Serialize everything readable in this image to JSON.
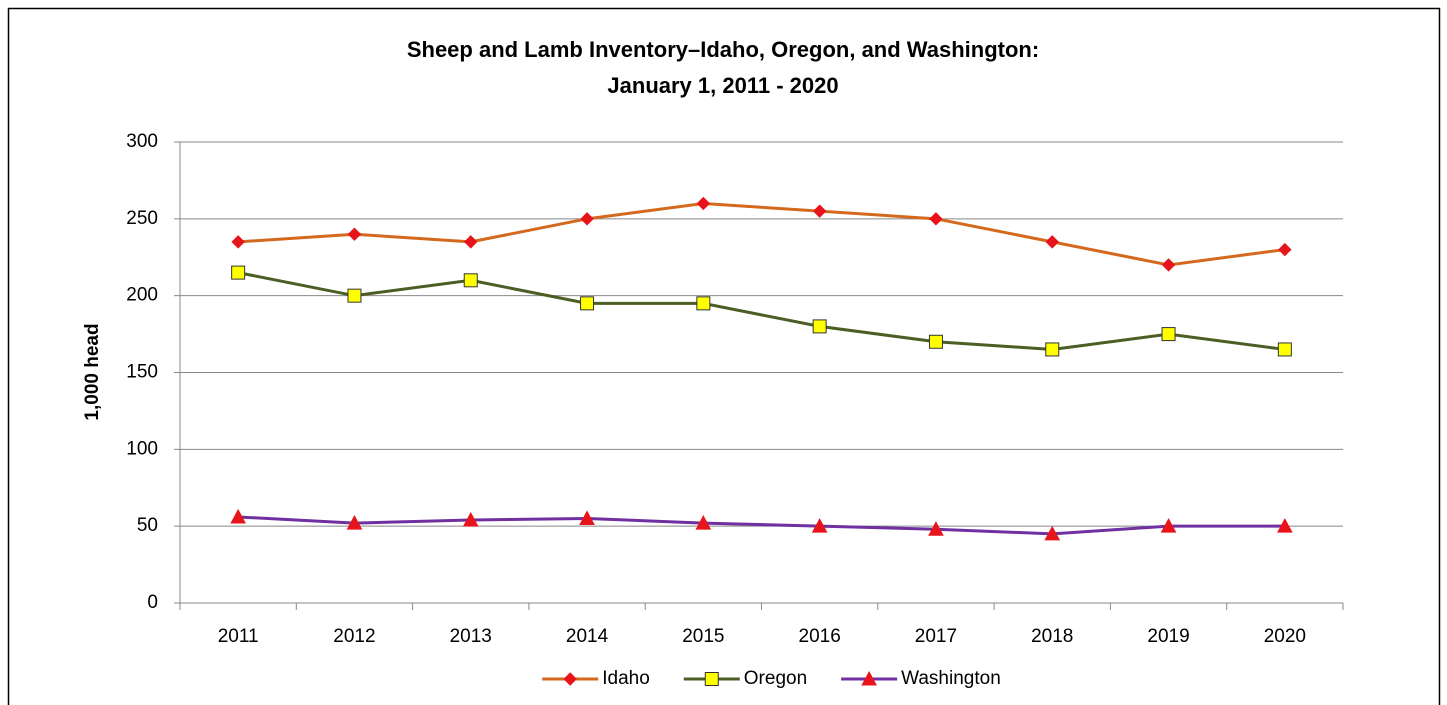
{
  "chart_data": {
    "type": "line",
    "title": [
      "Sheep and Lamb Inventory–Idaho, Oregon, and Washington:",
      "January 1, 2011 - 2020"
    ],
    "y_label": "1,000 head",
    "categories": [
      "2011",
      "2012",
      "2013",
      "2014",
      "2015",
      "2016",
      "2017",
      "2018",
      "2019",
      "2020"
    ],
    "series": [
      {
        "name": "Idaho",
        "color": "#d4691e",
        "marker": "diamond",
        "marker_color": "#e8141b",
        "values": [
          235,
          240,
          235,
          250,
          260,
          255,
          250,
          235,
          220,
          230
        ]
      },
      {
        "name": "Oregon",
        "color": "#4b5e23",
        "marker": "square",
        "marker_color": "#ffff00",
        "values": [
          215,
          200,
          210,
          195,
          195,
          180,
          170,
          165,
          175,
          165
        ]
      },
      {
        "name": "Washington",
        "color": "#7030a0",
        "marker": "triangle",
        "marker_color": "#e8141b",
        "values": [
          56,
          52,
          54,
          55,
          52,
          50,
          48,
          45,
          50,
          50
        ]
      }
    ],
    "ylim": [
      0,
      300
    ],
    "yticks": [
      0,
      50,
      100,
      150,
      200,
      250,
      300
    ],
    "grid": true,
    "legend": "bottom"
  }
}
